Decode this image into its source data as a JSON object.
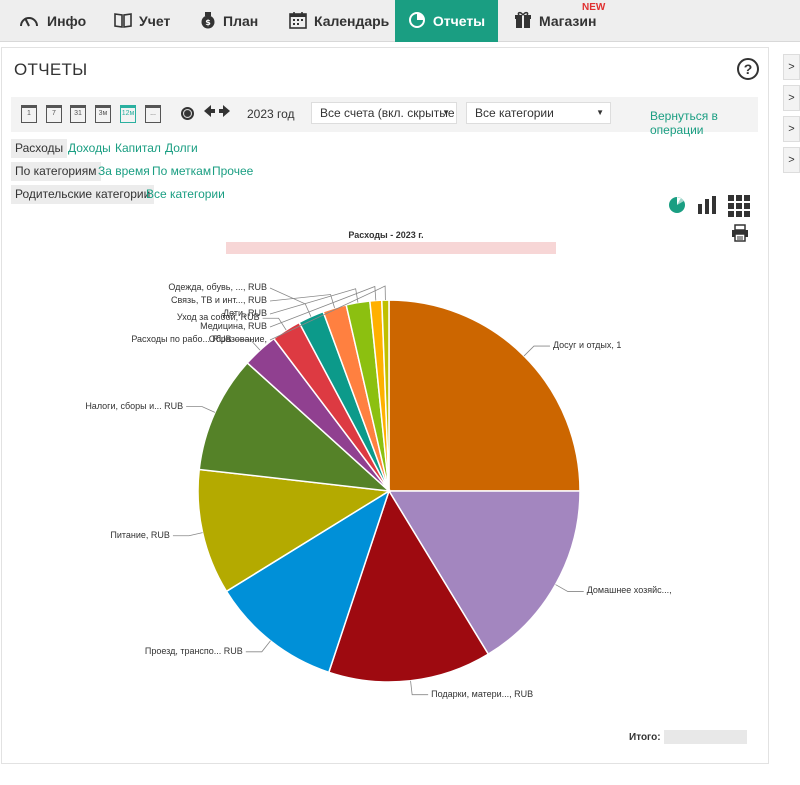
{
  "nav": {
    "items": [
      {
        "label": "Инфо",
        "icon": "gauge-icon"
      },
      {
        "label": "Учет",
        "icon": "book-icon"
      },
      {
        "label": "План",
        "icon": "money-bag-icon"
      },
      {
        "label": "Календарь",
        "icon": "calendar-icon"
      },
      {
        "label": "Отчеты",
        "icon": "chart-pie-icon",
        "active": true
      },
      {
        "label": "Магазин",
        "icon": "gift-icon"
      }
    ],
    "new_badge": "NEW",
    "active_color": "#1a9e82"
  },
  "page": {
    "title": "ОТЧЕТЫ",
    "help": "?"
  },
  "toolbar": {
    "period_icons": [
      "1",
      "7",
      "31",
      "3м",
      "12м",
      "..."
    ],
    "selected_period": "12м",
    "year_label": "2023 год",
    "accounts_select": "Все счета (вкл. скрытые",
    "categories_select": "Все категории",
    "back_link": "Вернуться в операции"
  },
  "tabs": {
    "type": [
      "Расходы",
      "Доходы",
      "Капитал",
      "Долги"
    ],
    "grouping": [
      "По категориям",
      "За время",
      "По меткам",
      "Прочее"
    ],
    "level": [
      "Родительские категории",
      "Все категории"
    ]
  },
  "chart_data": {
    "type": "pie",
    "title": "Расходы - 2023 г.",
    "slices": [
      {
        "label": "Досуг и отдых, 1",
        "value": 25.0,
        "color": "#cc6600"
      },
      {
        "label": "Домашнее хозяйс...,",
        "value": 16.3,
        "color": "#a386bf"
      },
      {
        "label": "Подарки, матери..., RUB",
        "value": 13.8,
        "color": "#9e0a10"
      },
      {
        "label": "Проезд, транспо... RUB",
        "value": 11.1,
        "color": "#0090d8"
      },
      {
        "label": "Питание, RUB",
        "value": 10.6,
        "color": "#b4aa00"
      },
      {
        "label": "Налоги, сборы и... RUB",
        "value": 9.9,
        "color": "#558228"
      },
      {
        "label": "Расходы по рабо... RUB",
        "value": 3.0,
        "color": "#904090"
      },
      {
        "label": "Уход за собой, RUB",
        "value": 2.5,
        "color": "#dd3a42"
      },
      {
        "label": "Одежда, обувь, ..., RUB",
        "value": 2.2,
        "color": "#0c9a8a"
      },
      {
        "label": "Связь, ТВ и инт..., RUB",
        "value": 2.0,
        "color": "#ff8040"
      },
      {
        "label": "Дети, RUB",
        "value": 2.0,
        "color": "#8cc010"
      },
      {
        "label": "Медицина, RUB",
        "value": 1.0,
        "color": "#ffb000"
      },
      {
        "label": "Образование,",
        "value": 0.6,
        "color": "#c0c000"
      }
    ],
    "total_label": "Итого:"
  },
  "right_strip": {
    "buttons": [
      ">",
      ">",
      ">",
      ">"
    ]
  }
}
